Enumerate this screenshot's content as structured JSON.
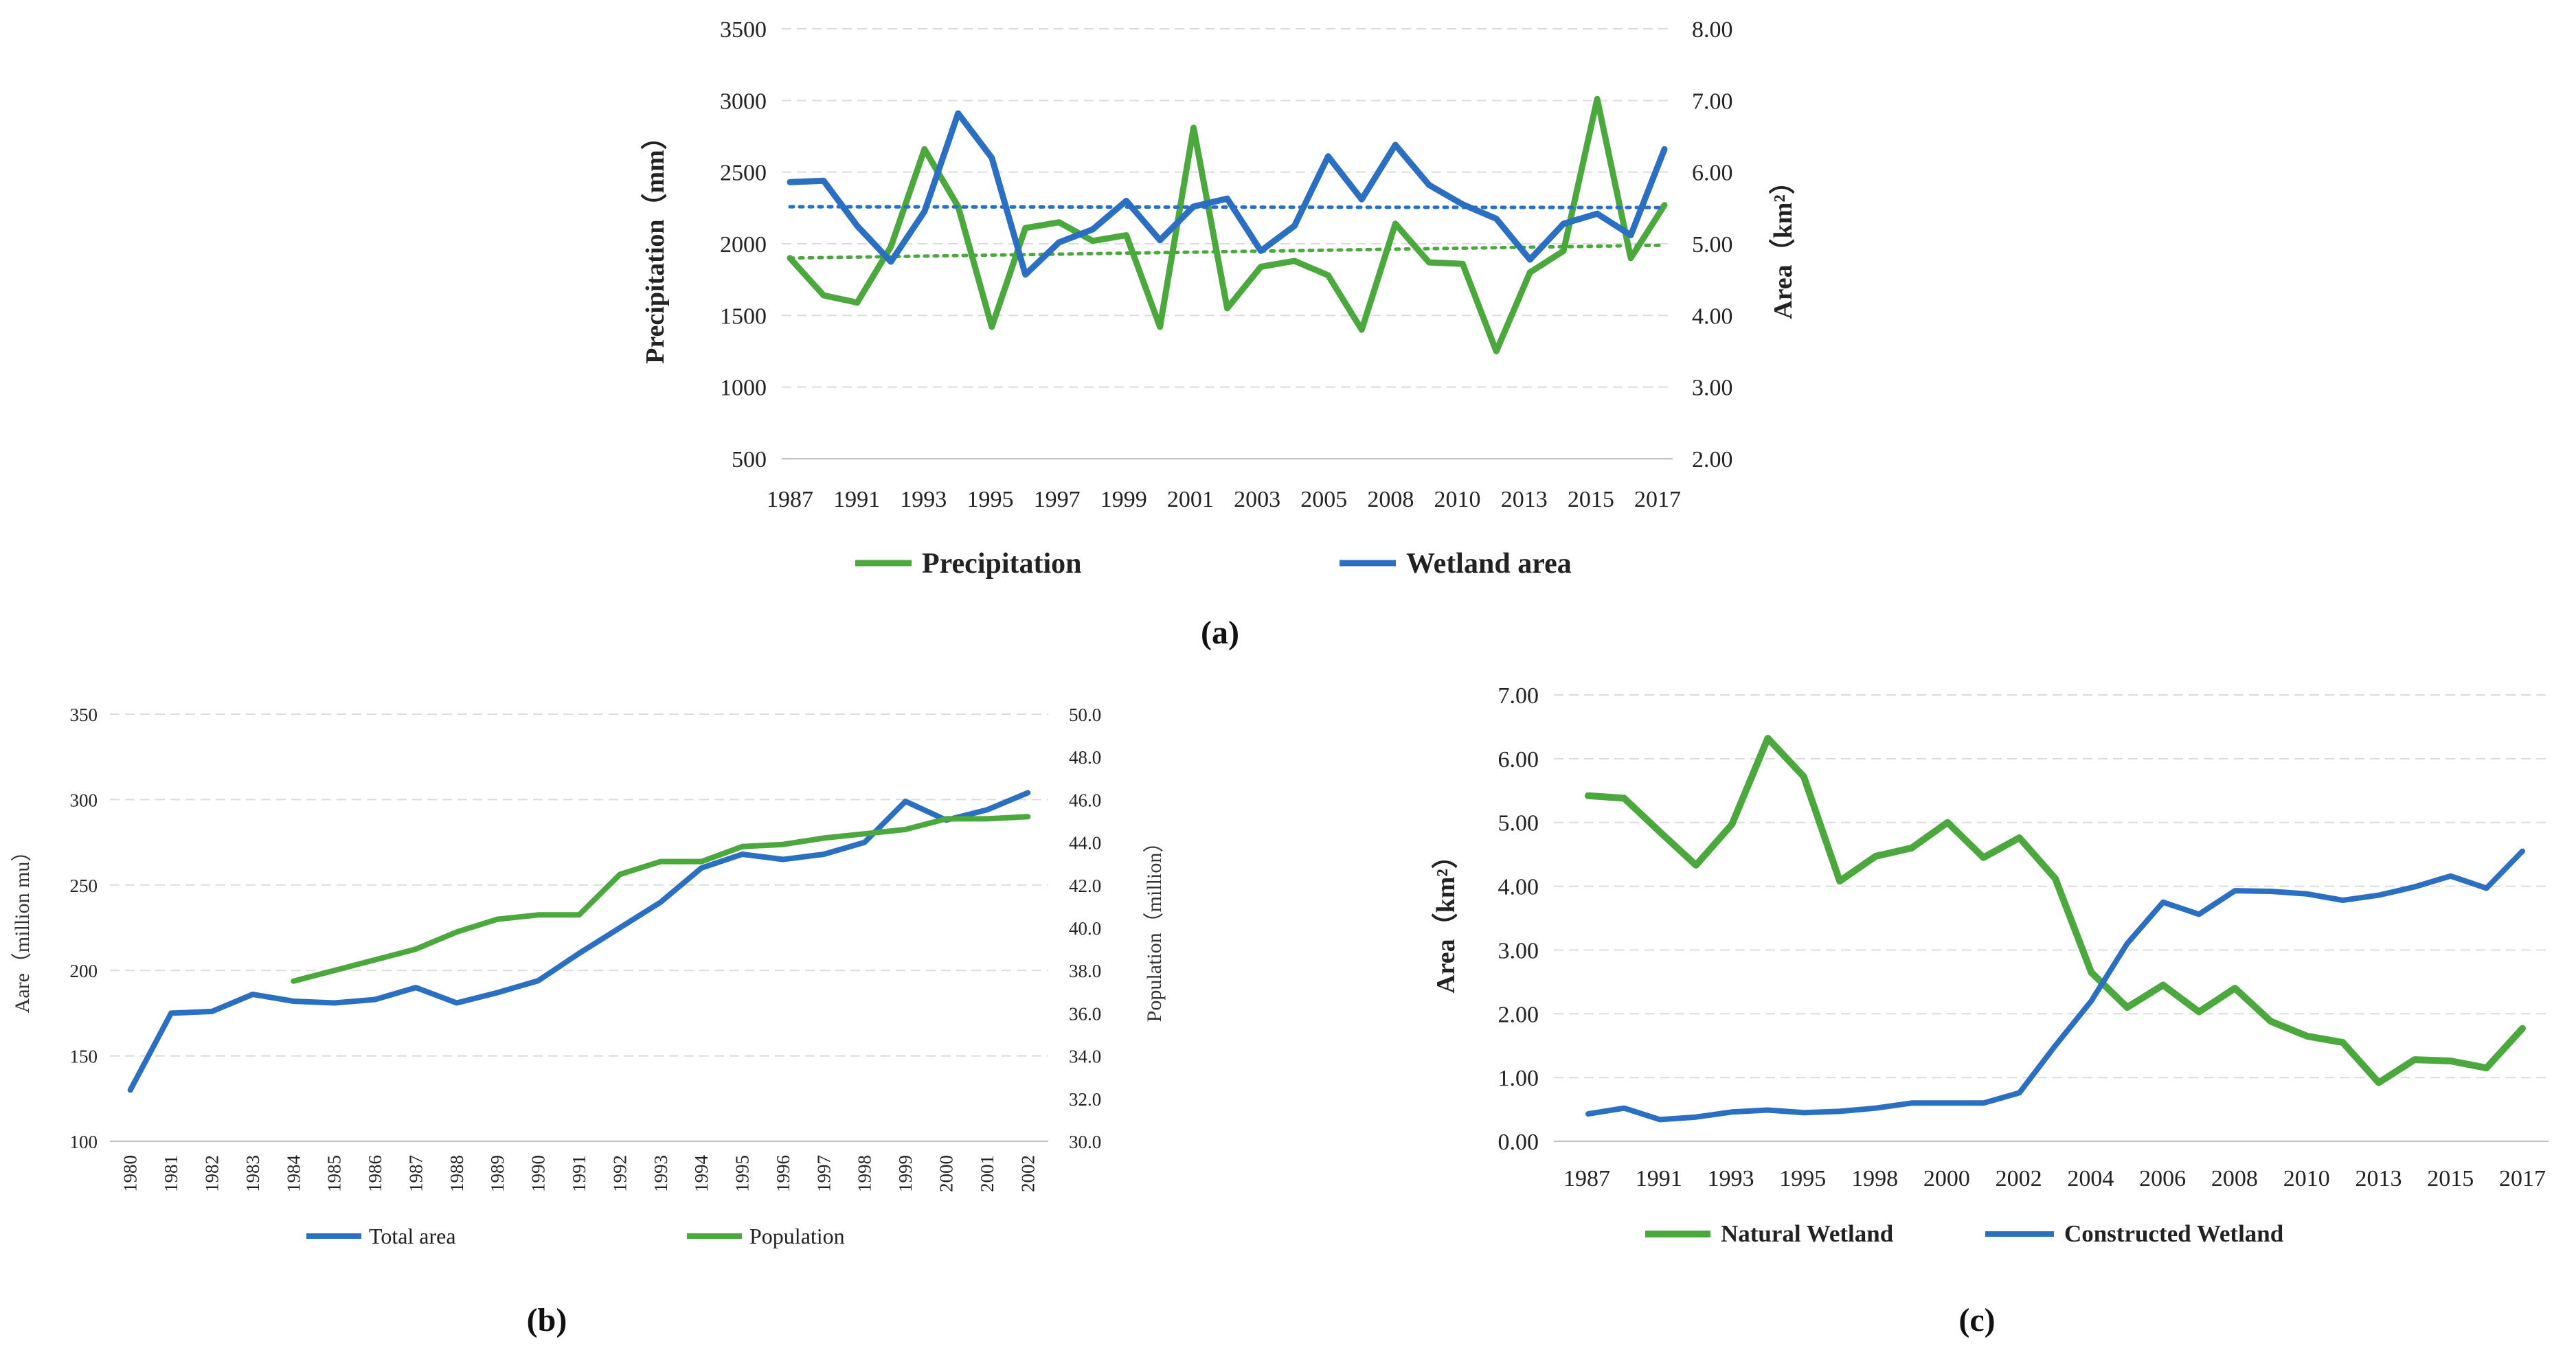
{
  "colors": {
    "green": "#4aa83c",
    "blue": "#2a6fc2",
    "grid": "#dcdcdc"
  },
  "chart_data": [
    {
      "id": "a",
      "panel_label": "(a)",
      "type": "line",
      "xlabel": "",
      "ylabel_left": "Precipitation（mm）",
      "ylabel_right": "Area（km²）",
      "x_tick_labels": [
        "1987",
        "1991",
        "1993",
        "1995",
        "1997",
        "1999",
        "2001",
        "2003",
        "2005",
        "2008",
        "2010",
        "2013",
        "2015",
        "2017"
      ],
      "ylim_left": [
        500,
        3500
      ],
      "left_ticks": [
        "500",
        "1000",
        "1500",
        "2000",
        "2500",
        "3000",
        "3500"
      ],
      "ylim_right": [
        2,
        8
      ],
      "right_ticks": [
        "2.00",
        "3.00",
        "4.00",
        "5.00",
        "6.00",
        "7.00",
        "8.00"
      ],
      "trendlines": true,
      "series": [
        {
          "name": "Precipitation",
          "axis": "left",
          "color": "#4aa83c",
          "values": [
            1900,
            1640,
            1590,
            1980,
            2660,
            2260,
            1420,
            2110,
            2150,
            2020,
            2060,
            1420,
            2810,
            1550,
            1840,
            1880,
            1780,
            1400,
            2140,
            1870,
            1860,
            1250,
            1800,
            1950,
            3010,
            1900,
            2270
          ]
        },
        {
          "name": "Wetland area",
          "axis": "right",
          "color": "#2a6fc2",
          "values": [
            5.86,
            5.88,
            5.25,
            4.75,
            5.45,
            6.82,
            6.2,
            4.57,
            5.02,
            5.2,
            5.6,
            5.05,
            5.52,
            5.63,
            4.9,
            5.25,
            6.22,
            5.62,
            6.38,
            5.82,
            5.55,
            5.35,
            4.78,
            5.28,
            5.42,
            5.12,
            6.32
          ]
        }
      ]
    },
    {
      "id": "b",
      "panel_label": "(b)",
      "type": "line",
      "ylabel_left": "Aare（million mu）",
      "ylabel_right": "Population（million）",
      "categories": [
        "1980",
        "1981",
        "1982",
        "1983",
        "1984",
        "1985",
        "1986",
        "1987",
        "1988",
        "1989",
        "1990",
        "1991",
        "1992",
        "1993",
        "1994",
        "1995",
        "1996",
        "1997",
        "1998",
        "1999",
        "2000",
        "2001",
        "2002"
      ],
      "ylim_left": [
        100,
        350
      ],
      "left_ticks": [
        "100",
        "150",
        "200",
        "250",
        "300",
        "350"
      ],
      "ylim_right": [
        30,
        50
      ],
      "right_ticks": [
        "30.0",
        "32.0",
        "34.0",
        "36.0",
        "38.0",
        "40.0",
        "42.0",
        "44.0",
        "46.0",
        "48.0",
        "50.0"
      ],
      "series": [
        {
          "name": "Total area",
          "axis": "left",
          "color": "#2a6fc2",
          "values": [
            130,
            175,
            176,
            186,
            182,
            181,
            183,
            190,
            181,
            187,
            194,
            210,
            225,
            240,
            260,
            268,
            265,
            268,
            275,
            299,
            288,
            294,
            304
          ]
        },
        {
          "name": "Population",
          "axis": "right",
          "color": "#4aa83c",
          "values": [
            null,
            null,
            null,
            null,
            37.5,
            38.0,
            38.5,
            39.0,
            39.8,
            40.4,
            40.6,
            40.6,
            42.5,
            43.1,
            43.1,
            43.8,
            43.9,
            44.2,
            44.4,
            44.6,
            45.1,
            45.1,
            45.2
          ]
        }
      ]
    },
    {
      "id": "c",
      "panel_label": "(c)",
      "type": "line",
      "ylabel": "Area（km²）",
      "x_tick_labels": [
        "1987",
        "1991",
        "1993",
        "1995",
        "1998",
        "2000",
        "2002",
        "2004",
        "2006",
        "2008",
        "2010",
        "2013",
        "2015",
        "2017"
      ],
      "ylim": [
        0,
        7
      ],
      "y_ticks": [
        "0.00",
        "1.00",
        "2.00",
        "3.00",
        "4.00",
        "5.00",
        "6.00",
        "7.00"
      ],
      "series": [
        {
          "name": "Natural Wetland",
          "color": "#4aa83c",
          "values": [
            5.42,
            5.38,
            4.85,
            4.33,
            4.97,
            6.32,
            5.72,
            4.08,
            4.47,
            4.6,
            5.0,
            4.45,
            4.76,
            4.12,
            2.65,
            2.1,
            2.45,
            2.03,
            2.4,
            1.88,
            1.65,
            1.55,
            0.92,
            1.28,
            1.26,
            1.15,
            1.77
          ]
        },
        {
          "name": "Constructed Wetland",
          "color": "#2a6fc2",
          "values": [
            0.43,
            0.52,
            0.34,
            0.38,
            0.46,
            0.49,
            0.45,
            0.47,
            0.52,
            0.6,
            0.6,
            0.6,
            0.76,
            1.5,
            2.2,
            3.1,
            3.75,
            3.56,
            3.93,
            3.92,
            3.88,
            3.78,
            3.86,
            3.99,
            4.16,
            3.97,
            4.55
          ]
        }
      ]
    }
  ]
}
